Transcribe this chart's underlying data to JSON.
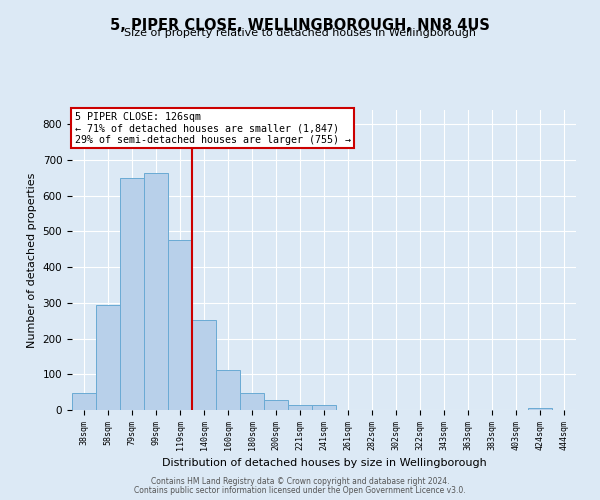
{
  "title": "5, PIPER CLOSE, WELLINGBOROUGH, NN8 4US",
  "subtitle": "Size of property relative to detached houses in Wellingborough",
  "xlabel": "Distribution of detached houses by size in Wellingborough",
  "ylabel": "Number of detached properties",
  "bar_labels": [
    "38sqm",
    "58sqm",
    "79sqm",
    "99sqm",
    "119sqm",
    "140sqm",
    "160sqm",
    "180sqm",
    "200sqm",
    "221sqm",
    "241sqm",
    "261sqm",
    "282sqm",
    "302sqm",
    "322sqm",
    "343sqm",
    "363sqm",
    "383sqm",
    "403sqm",
    "424sqm",
    "444sqm"
  ],
  "bar_values": [
    47,
    293,
    651,
    664,
    476,
    252,
    113,
    49,
    28,
    14,
    14,
    1,
    1,
    1,
    1,
    1,
    1,
    1,
    1,
    5,
    1
  ],
  "bar_color": "#b8d0ea",
  "bar_edge_color": "#6aaad4",
  "vline_x": 4.5,
  "vline_color": "#cc0000",
  "annotation_title": "5 PIPER CLOSE: 126sqm",
  "annotation_line1": "← 71% of detached houses are smaller (1,847)",
  "annotation_line2": "29% of semi-detached houses are larger (755) →",
  "annotation_box_color": "#cc0000",
  "ylim": [
    0,
    840
  ],
  "yticks": [
    0,
    100,
    200,
    300,
    400,
    500,
    600,
    700,
    800
  ],
  "bg_color": "#dce9f5",
  "plot_bg_color": "#dce9f5",
  "footer_line1": "Contains HM Land Registry data © Crown copyright and database right 2024.",
  "footer_line2": "Contains public sector information licensed under the Open Government Licence v3.0."
}
